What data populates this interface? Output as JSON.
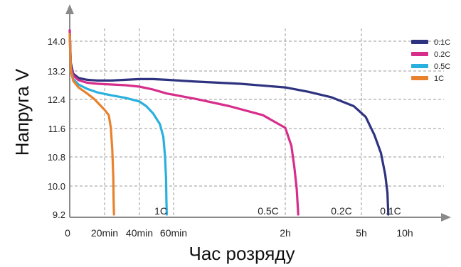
{
  "chart_data": {
    "type": "line",
    "title": "",
    "xlabel": "Час розряду",
    "ylabel": "Напруга V",
    "y_ticks": [
      "14.0",
      "13.2",
      "12.4",
      "11.6",
      "10.8",
      "10.0",
      "9.2"
    ],
    "x_ticks": [
      "0",
      "20min",
      "40min",
      "60min",
      "2h",
      "5h",
      "10h"
    ],
    "ylim": [
      9.2,
      14.4
    ],
    "grid": true,
    "legend_position": "top-right",
    "series": [
      {
        "name": "0.1C",
        "end_label": "0.1C",
        "color": "#2e3380",
        "points": [
          [
            0,
            14.3
          ],
          [
            0.03,
            13.4
          ],
          [
            0.1,
            13.1
          ],
          [
            0.25,
            12.98
          ],
          [
            0.5,
            12.93
          ],
          [
            0.8,
            12.91
          ],
          [
            1.2,
            12.91
          ],
          [
            1.6,
            12.93
          ],
          [
            2,
            12.95
          ],
          [
            2.4,
            12.95
          ],
          [
            2.8,
            12.93
          ],
          [
            3.2,
            12.88
          ],
          [
            3.6,
            12.82
          ],
          [
            4.0,
            12.72
          ],
          [
            4.3,
            12.6
          ],
          [
            4.6,
            12.45
          ],
          [
            4.9,
            12.2
          ],
          [
            5.1,
            11.9
          ],
          [
            5.3,
            11.4
          ],
          [
            5.45,
            10.9
          ],
          [
            5.55,
            10.3
          ],
          [
            5.6,
            9.8
          ],
          [
            5.62,
            9.2
          ]
        ]
      },
      {
        "name": "0.2C",
        "end_label": "0.2C",
        "color": "#d62e8a",
        "points": [
          [
            0,
            14.3
          ],
          [
            0.03,
            13.3
          ],
          [
            0.1,
            13.05
          ],
          [
            0.25,
            12.92
          ],
          [
            0.5,
            12.85
          ],
          [
            0.8,
            12.82
          ],
          [
            1.2,
            12.8
          ],
          [
            1.6,
            12.78
          ],
          [
            2,
            12.74
          ],
          [
            2.4,
            12.66
          ],
          [
            2.8,
            12.55
          ],
          [
            3.2,
            12.4
          ],
          [
            3.5,
            12.2
          ],
          [
            3.8,
            11.95
          ],
          [
            4.0,
            11.6
          ],
          [
            4.08,
            11.1
          ],
          [
            4.12,
            10.5
          ],
          [
            4.15,
            9.9
          ],
          [
            4.17,
            9.2
          ]
        ]
      },
      {
        "name": "0.5C",
        "end_label": "0.5C",
        "color": "#2ab0de",
        "points": [
          [
            0,
            14.2
          ],
          [
            0.03,
            13.2
          ],
          [
            0.1,
            12.95
          ],
          [
            0.25,
            12.8
          ],
          [
            0.5,
            12.68
          ],
          [
            0.8,
            12.58
          ],
          [
            1.2,
            12.5
          ],
          [
            1.6,
            12.43
          ],
          [
            2,
            12.33
          ],
          [
            2.2,
            12.2
          ],
          [
            2.4,
            12.0
          ],
          [
            2.6,
            11.7
          ],
          [
            2.7,
            11.35
          ],
          [
            2.75,
            10.8
          ],
          [
            2.78,
            10.2
          ],
          [
            2.79,
            9.6
          ],
          [
            2.8,
            9.2
          ]
        ]
      },
      {
        "name": "1C",
        "end_label": "1C",
        "color": "#e8822e",
        "points": [
          [
            0,
            14.2
          ],
          [
            0.03,
            13.2
          ],
          [
            0.1,
            12.9
          ],
          [
            0.25,
            12.72
          ],
          [
            0.5,
            12.55
          ],
          [
            0.7,
            12.4
          ],
          [
            0.85,
            12.25
          ],
          [
            1.0,
            12.1
          ],
          [
            1.12,
            11.95
          ],
          [
            1.18,
            11.6
          ],
          [
            1.22,
            11.0
          ],
          [
            1.25,
            10.2
          ],
          [
            1.26,
            9.6
          ],
          [
            1.27,
            9.2
          ]
        ]
      }
    ]
  }
}
